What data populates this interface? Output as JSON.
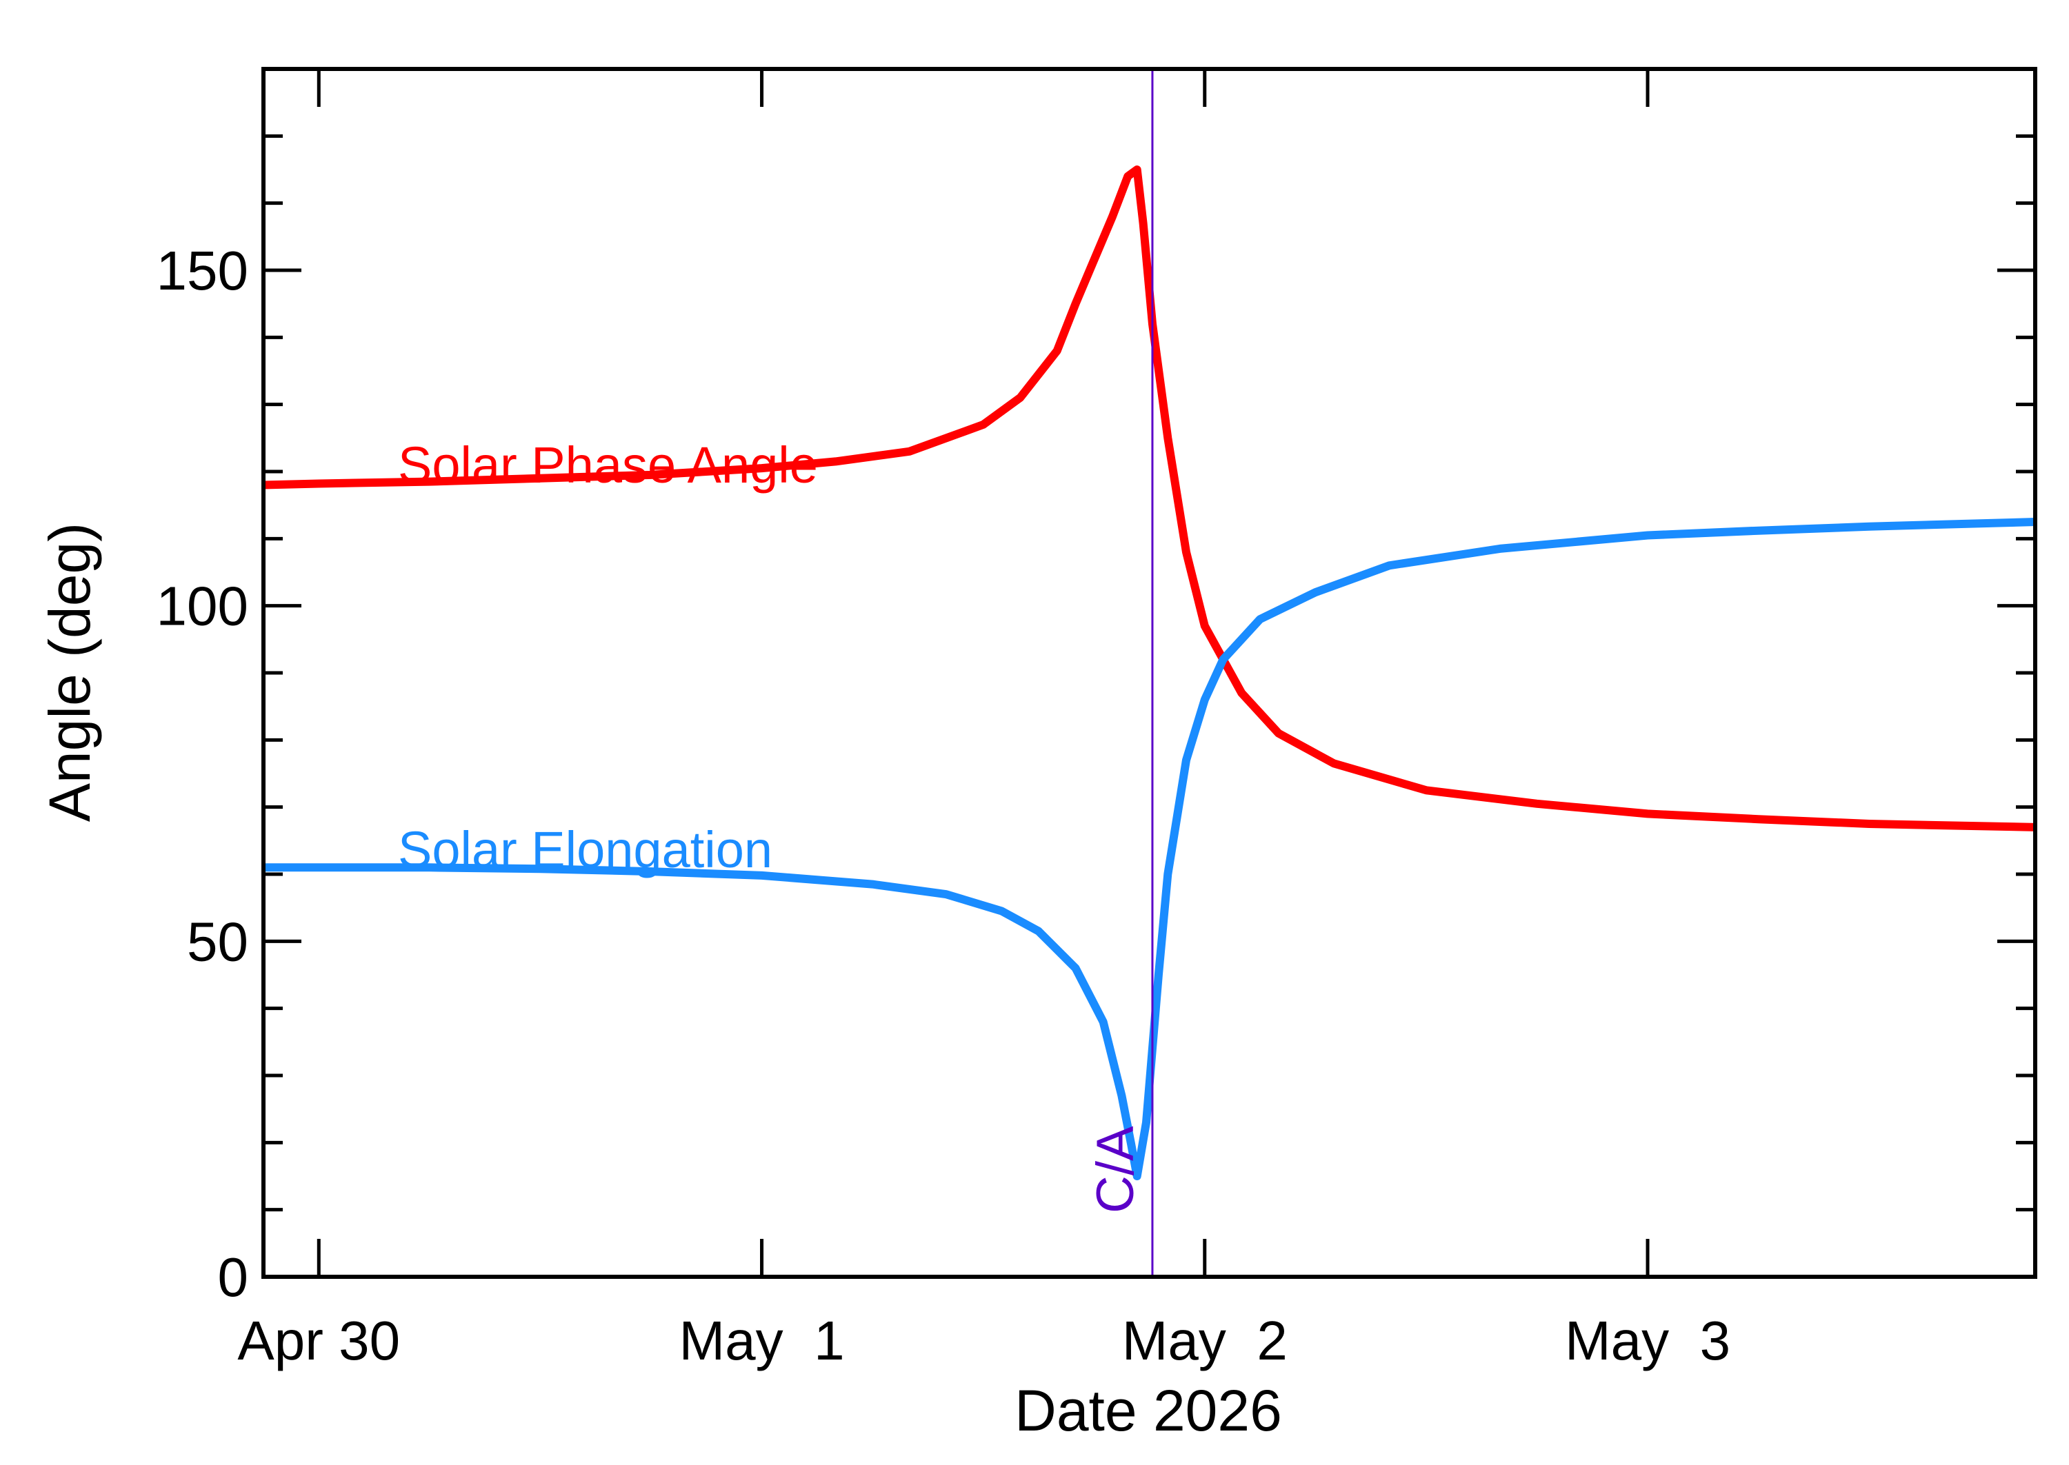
{
  "chart_data": {
    "type": "line",
    "xlabel": "Date 2026",
    "ylabel": "Angle (deg)",
    "x_tick_labels": [
      "Apr 30",
      "May  1",
      "May  2",
      "May  3"
    ],
    "x_ticks": [
      "2026-04-30",
      "2026-05-01",
      "2026-05-02",
      "2026-05-03"
    ],
    "xlim": [
      "2026-04-29T21:00",
      "2026-05-03T21:00"
    ],
    "y_tick_labels": [
      "0",
      "50",
      "100",
      "150"
    ],
    "ylim": [
      0,
      180
    ],
    "grid": false,
    "closest_approach": {
      "label": "C/A",
      "date": "2026-05-01T21:10",
      "color": "#5a00c8"
    },
    "series": [
      {
        "name": "Solar Phase Angle",
        "color": "#ff0000",
        "points": [
          [
            "2026-04-29T21:00",
            118
          ],
          [
            "2026-04-30T00:00",
            118.2
          ],
          [
            "2026-04-30T06:00",
            118.5
          ],
          [
            "2026-04-30T12:00",
            119
          ],
          [
            "2026-04-30T18:00",
            119.5
          ],
          [
            "2026-05-01T00:00",
            120.5
          ],
          [
            "2026-05-01T04:00",
            121.5
          ],
          [
            "2026-05-01T08:00",
            123
          ],
          [
            "2026-05-01T12:00",
            127
          ],
          [
            "2026-05-01T14:00",
            131
          ],
          [
            "2026-05-01T16:00",
            138
          ],
          [
            "2026-05-01T17:00",
            145
          ],
          [
            "2026-05-01T18:00",
            151.5
          ],
          [
            "2026-05-01T19:00",
            158
          ],
          [
            "2026-05-01T19:50",
            164
          ],
          [
            "2026-05-01T20:20",
            165
          ],
          [
            "2026-05-01T20:40",
            157
          ],
          [
            "2026-05-01T21:10",
            142
          ],
          [
            "2026-05-01T22:00",
            125
          ],
          [
            "2026-05-01T23:00",
            108
          ],
          [
            "2026-05-02T00:00",
            97
          ],
          [
            "2026-05-02T02:00",
            87
          ],
          [
            "2026-05-02T04:00",
            81
          ],
          [
            "2026-05-02T07:00",
            76.5
          ],
          [
            "2026-05-02T12:00",
            72.5
          ],
          [
            "2026-05-02T18:00",
            70.5
          ],
          [
            "2026-05-03T00:00",
            69
          ],
          [
            "2026-05-03T06:00",
            68.2
          ],
          [
            "2026-05-03T12:00",
            67.5
          ],
          [
            "2026-05-03T21:00",
            67
          ]
        ]
      },
      {
        "name": "Solar Elongation",
        "color": "#1a8cff",
        "points": [
          [
            "2026-04-29T21:00",
            61
          ],
          [
            "2026-04-30T06:00",
            61
          ],
          [
            "2026-04-30T12:00",
            60.8
          ],
          [
            "2026-04-30T18:00",
            60.4
          ],
          [
            "2026-05-01T00:00",
            59.8
          ],
          [
            "2026-05-01T06:00",
            58.5
          ],
          [
            "2026-05-01T10:00",
            57
          ],
          [
            "2026-05-01T13:00",
            54.5
          ],
          [
            "2026-05-01T15:00",
            51.5
          ],
          [
            "2026-05-01T17:00",
            46
          ],
          [
            "2026-05-01T18:30",
            38
          ],
          [
            "2026-05-01T19:30",
            27
          ],
          [
            "2026-05-01T20:00",
            20
          ],
          [
            "2026-05-01T20:20",
            15
          ],
          [
            "2026-05-01T20:50",
            23
          ],
          [
            "2026-05-01T21:30",
            45
          ],
          [
            "2026-05-01T22:00",
            60
          ],
          [
            "2026-05-01T23:00",
            77
          ],
          [
            "2026-05-02T00:00",
            86
          ],
          [
            "2026-05-02T01:00",
            92
          ],
          [
            "2026-05-02T03:00",
            98
          ],
          [
            "2026-05-02T06:00",
            102
          ],
          [
            "2026-05-02T10:00",
            106
          ],
          [
            "2026-05-02T16:00",
            108.5
          ],
          [
            "2026-05-03T00:00",
            110.5
          ],
          [
            "2026-05-03T06:00",
            111.2
          ],
          [
            "2026-05-03T12:00",
            111.8
          ],
          [
            "2026-05-03T21:00",
            112.5
          ]
        ]
      }
    ]
  }
}
